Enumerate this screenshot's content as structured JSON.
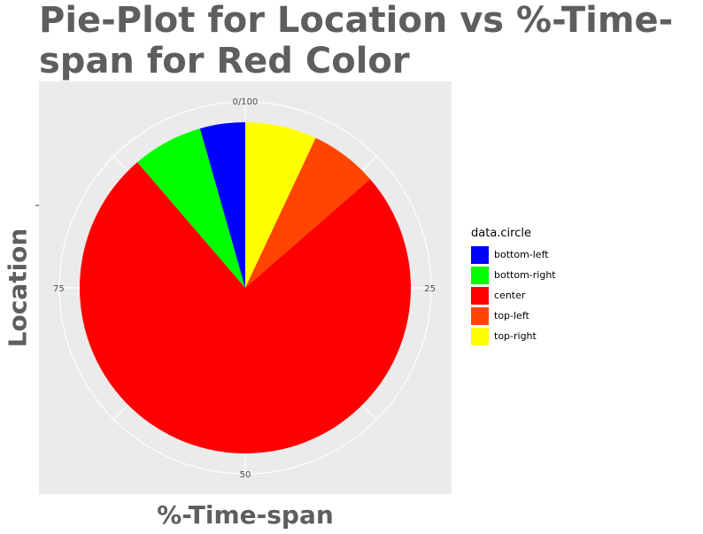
{
  "chart_data": {
    "type": "pie",
    "title": "Pie-Plot for Location vs %-Time-span for Red Color",
    "xlabel": "%-Time-span",
    "ylabel": "Location",
    "angle_ticks": [
      "0/100",
      "25",
      "50",
      "75"
    ],
    "legend_title": "data.circle",
    "legend_position": "right",
    "grid": true,
    "slices": [
      {
        "label": "top-right",
        "value": 7.0,
        "color": "#FFFF00"
      },
      {
        "label": "top-left",
        "value": 6.6,
        "color": "#FF4500"
      },
      {
        "label": "center",
        "value": 75.1,
        "color": "#FF0000"
      },
      {
        "label": "bottom-right",
        "value": 6.9,
        "color": "#00FF00"
      },
      {
        "label": "bottom-left",
        "value": 4.4,
        "color": "#0000FF"
      }
    ],
    "legend": [
      {
        "label": "bottom-left",
        "color": "#0000FF"
      },
      {
        "label": "bottom-right",
        "color": "#00FF00"
      },
      {
        "label": "center",
        "color": "#FF0000"
      },
      {
        "label": "top-left",
        "color": "#FF4500"
      },
      {
        "label": "top-right",
        "color": "#FFFF00"
      }
    ],
    "panel_background": "#EBEBEB"
  }
}
